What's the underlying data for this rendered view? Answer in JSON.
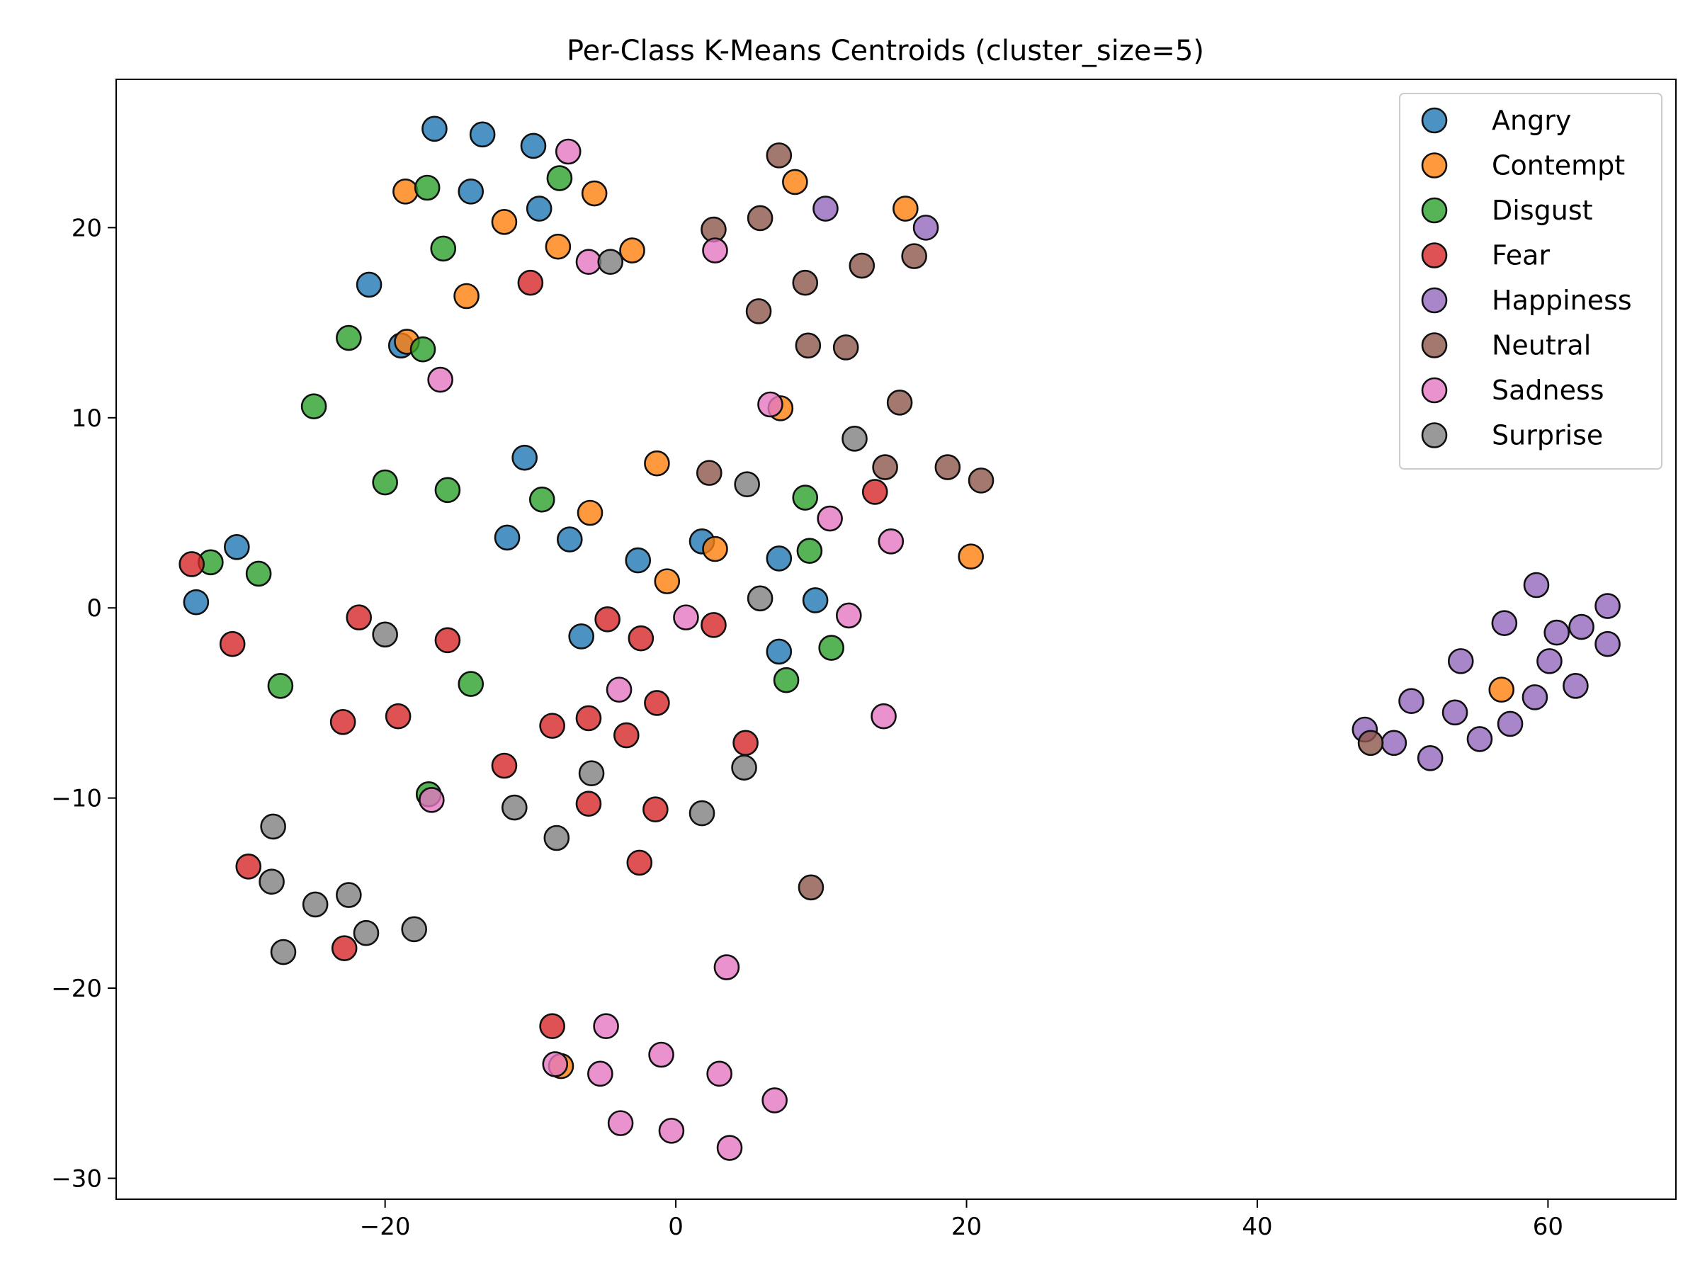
{
  "chart_data": {
    "type": "scatter",
    "title": "Per-Class K-Means Centroids (cluster_size=5)",
    "xlabel": "",
    "ylabel": "",
    "xlim": [
      -38.5,
      68.8
    ],
    "ylim": [
      -31.1,
      27.8
    ],
    "xticks": [
      -20,
      0,
      20,
      40,
      60
    ],
    "yticks": [
      -30,
      -20,
      -10,
      0,
      10,
      20
    ],
    "xtick_labels": [
      "−20",
      "0",
      "20",
      "40",
      "60"
    ],
    "ytick_labels": [
      "−30",
      "−20",
      "−10",
      "0",
      "10",
      "20"
    ],
    "grid": false,
    "legend_position": "top-right",
    "series": [
      {
        "name": "Angry",
        "color": "#1f77b4",
        "points": [
          [
            -16.6,
            25.2
          ],
          [
            -13.3,
            24.9
          ],
          [
            -9.8,
            24.3
          ],
          [
            -14.1,
            21.9
          ],
          [
            -9.4,
            21.0
          ],
          [
            -21.1,
            17.0
          ],
          [
            -18.9,
            13.8
          ],
          [
            -10.4,
            7.9
          ],
          [
            -11.6,
            3.7
          ],
          [
            -7.3,
            3.6
          ],
          [
            -2.6,
            2.5
          ],
          [
            1.8,
            3.5
          ],
          [
            7.1,
            2.6
          ],
          [
            9.6,
            0.4
          ],
          [
            -6.5,
            -1.5
          ],
          [
            7.1,
            -2.3
          ],
          [
            -30.2,
            3.2
          ],
          [
            -33.0,
            0.3
          ]
        ]
      },
      {
        "name": "Contempt",
        "color": "#ff7f0e",
        "points": [
          [
            -18.6,
            21.9
          ],
          [
            -11.8,
            20.3
          ],
          [
            -5.6,
            21.8
          ],
          [
            -8.1,
            19.0
          ],
          [
            -3.0,
            18.8
          ],
          [
            8.2,
            22.4
          ],
          [
            15.8,
            21.0
          ],
          [
            -14.4,
            16.4
          ],
          [
            -18.5,
            14.0
          ],
          [
            7.2,
            10.5
          ],
          [
            -1.3,
            7.6
          ],
          [
            -5.9,
            5.0
          ],
          [
            2.7,
            3.1
          ],
          [
            -0.6,
            1.4
          ],
          [
            20.3,
            2.7
          ],
          [
            56.8,
            -4.3
          ],
          [
            -7.9,
            -24.1
          ]
        ]
      },
      {
        "name": "Disgust",
        "color": "#2ca02c",
        "points": [
          [
            -17.1,
            22.1
          ],
          [
            -8.0,
            22.6
          ],
          [
            -16.0,
            18.9
          ],
          [
            -22.5,
            14.2
          ],
          [
            -17.4,
            13.6
          ],
          [
            -24.9,
            10.6
          ],
          [
            -20.0,
            6.6
          ],
          [
            -15.7,
            6.2
          ],
          [
            -9.2,
            5.7
          ],
          [
            8.9,
            5.8
          ],
          [
            9.2,
            3.0
          ],
          [
            -32.0,
            2.4
          ],
          [
            -28.7,
            1.8
          ],
          [
            -27.2,
            -4.1
          ],
          [
            -14.1,
            -4.0
          ],
          [
            7.6,
            -3.8
          ],
          [
            10.7,
            -2.1
          ],
          [
            -17.0,
            -9.8
          ]
        ]
      },
      {
        "name": "Fear",
        "color": "#d62728",
        "points": [
          [
            -10.0,
            17.1
          ],
          [
            13.7,
            6.1
          ],
          [
            -33.3,
            2.3
          ],
          [
            -30.5,
            -1.9
          ],
          [
            -21.8,
            -0.5
          ],
          [
            -15.7,
            -1.7
          ],
          [
            -4.7,
            -0.6
          ],
          [
            -2.4,
            -1.6
          ],
          [
            2.6,
            -0.9
          ],
          [
            -1.3,
            -5.0
          ],
          [
            -22.9,
            -6.0
          ],
          [
            -19.1,
            -5.7
          ],
          [
            -8.5,
            -6.2
          ],
          [
            -6.0,
            -5.8
          ],
          [
            -3.4,
            -6.7
          ],
          [
            4.8,
            -7.1
          ],
          [
            -11.8,
            -8.3
          ],
          [
            -6.0,
            -10.3
          ],
          [
            -1.4,
            -10.6
          ],
          [
            -29.4,
            -13.6
          ],
          [
            -2.5,
            -13.4
          ],
          [
            -22.8,
            -17.9
          ],
          [
            -8.5,
            -22.0
          ]
        ]
      },
      {
        "name": "Happiness",
        "color": "#9467bd",
        "points": [
          [
            10.3,
            21.0
          ],
          [
            17.2,
            20.0
          ],
          [
            59.2,
            1.2
          ],
          [
            64.1,
            0.1
          ],
          [
            57.0,
            -0.8
          ],
          [
            60.6,
            -1.3
          ],
          [
            62.3,
            -1.0
          ],
          [
            64.1,
            -1.9
          ],
          [
            54.0,
            -2.8
          ],
          [
            60.1,
            -2.8
          ],
          [
            61.9,
            -4.1
          ],
          [
            59.1,
            -4.7
          ],
          [
            50.6,
            -4.9
          ],
          [
            53.6,
            -5.5
          ],
          [
            47.4,
            -6.4
          ],
          [
            57.4,
            -6.1
          ],
          [
            49.4,
            -7.1
          ],
          [
            55.3,
            -6.9
          ],
          [
            51.9,
            -7.9
          ]
        ]
      },
      {
        "name": "Neutral",
        "color": "#8c564b",
        "points": [
          [
            7.1,
            23.8
          ],
          [
            5.8,
            20.5
          ],
          [
            2.6,
            19.9
          ],
          [
            12.8,
            18.0
          ],
          [
            16.4,
            18.5
          ],
          [
            8.9,
            17.1
          ],
          [
            5.7,
            15.6
          ],
          [
            9.1,
            13.8
          ],
          [
            11.7,
            13.7
          ],
          [
            15.4,
            10.8
          ],
          [
            2.3,
            7.1
          ],
          [
            14.4,
            7.4
          ],
          [
            18.7,
            7.4
          ],
          [
            21.0,
            6.7
          ],
          [
            47.8,
            -7.1
          ],
          [
            9.3,
            -14.7
          ]
        ]
      },
      {
        "name": "Sadness",
        "color": "#e377c2",
        "points": [
          [
            -7.4,
            24.0
          ],
          [
            -6.0,
            18.2
          ],
          [
            2.7,
            18.8
          ],
          [
            -16.2,
            12.0
          ],
          [
            6.5,
            10.7
          ],
          [
            10.6,
            4.7
          ],
          [
            14.8,
            3.5
          ],
          [
            0.7,
            -0.5
          ],
          [
            11.9,
            -0.4
          ],
          [
            -3.9,
            -4.3
          ],
          [
            14.3,
            -5.7
          ],
          [
            -16.8,
            -10.1
          ],
          [
            3.5,
            -18.9
          ],
          [
            -4.8,
            -22.0
          ],
          [
            -1.0,
            -23.5
          ],
          [
            -8.3,
            -24.0
          ],
          [
            -5.2,
            -24.5
          ],
          [
            3.0,
            -24.5
          ],
          [
            6.8,
            -25.9
          ],
          [
            -3.8,
            -27.1
          ],
          [
            -0.3,
            -27.5
          ],
          [
            3.7,
            -28.4
          ]
        ]
      },
      {
        "name": "Surprise",
        "color": "#7f7f7f",
        "points": [
          [
            -4.5,
            18.2
          ],
          [
            12.3,
            8.9
          ],
          [
            4.9,
            6.5
          ],
          [
            5.8,
            0.5
          ],
          [
            -20.0,
            -1.4
          ],
          [
            4.7,
            -8.4
          ],
          [
            -5.8,
            -8.7
          ],
          [
            -11.1,
            -10.5
          ],
          [
            1.8,
            -10.8
          ],
          [
            -8.2,
            -12.1
          ],
          [
            -27.7,
            -11.5
          ],
          [
            -27.8,
            -14.4
          ],
          [
            -24.8,
            -15.6
          ],
          [
            -22.5,
            -15.1
          ],
          [
            -21.3,
            -17.1
          ],
          [
            -18.0,
            -16.9
          ],
          [
            -27.0,
            -18.1
          ]
        ]
      }
    ]
  }
}
